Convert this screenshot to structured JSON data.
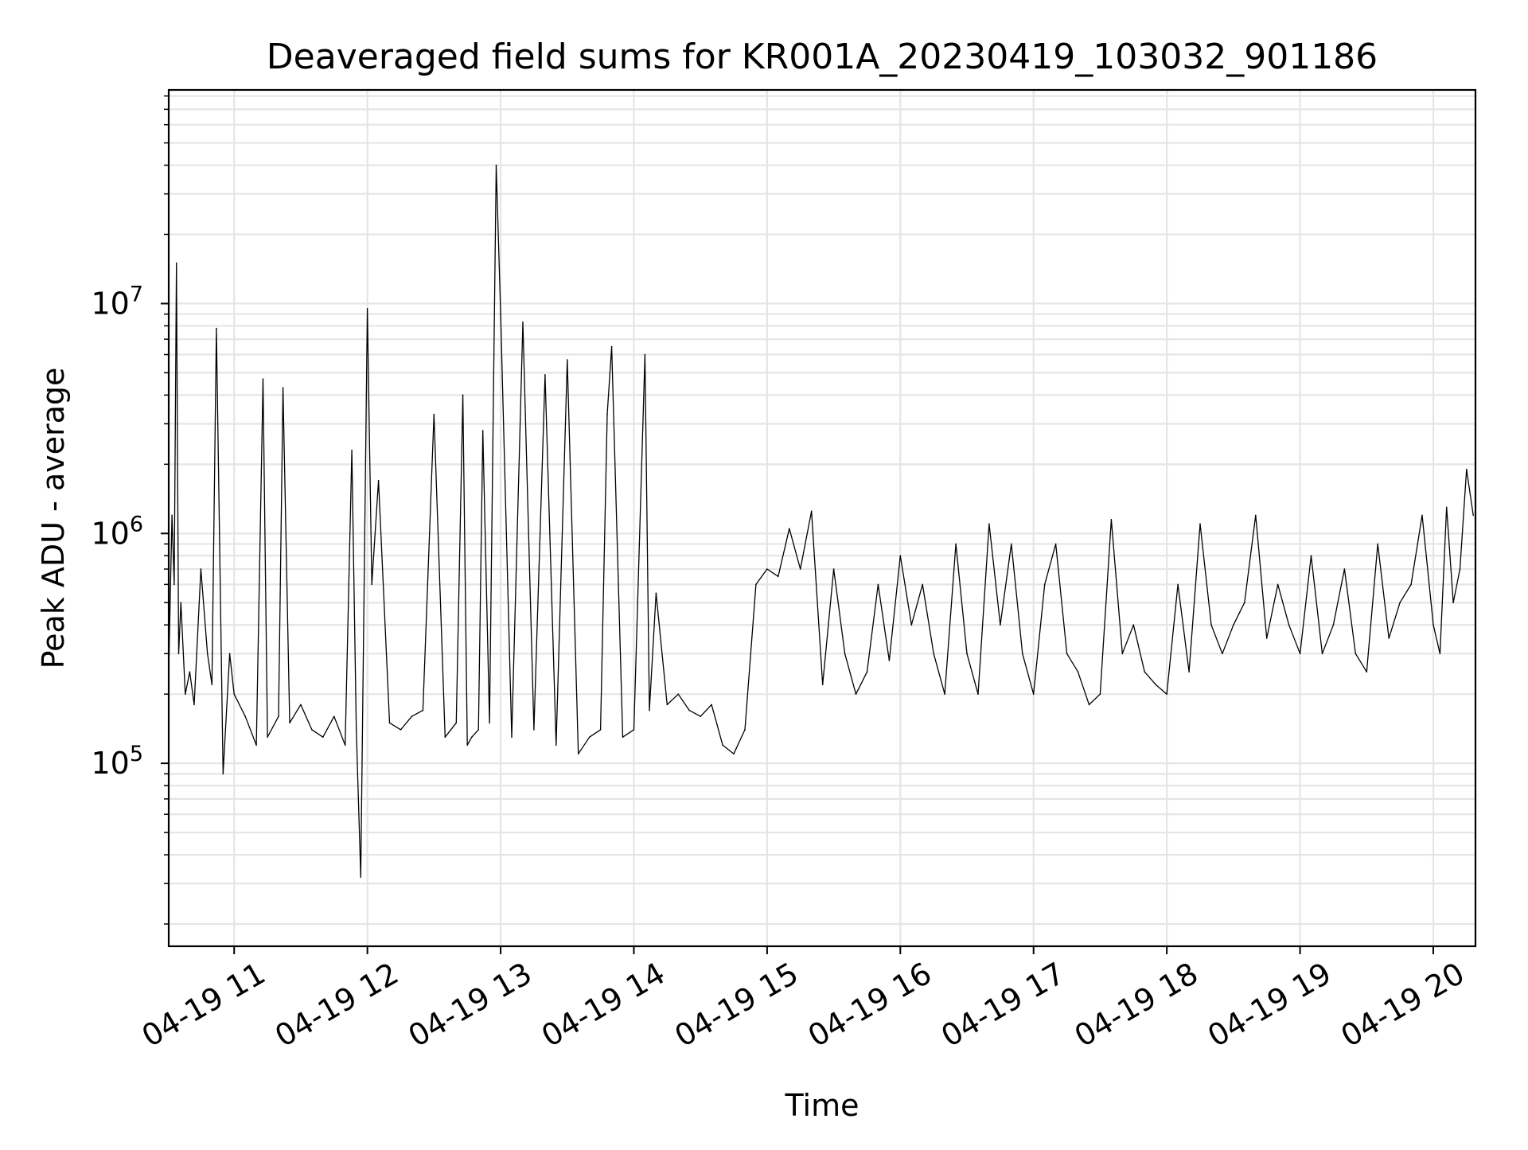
{
  "chart_data": {
    "type": "line",
    "title": "Deaveraged field sums for KR001A_20230419_103032_901186",
    "xlabel": "Time",
    "ylabel": "Peak ADU - average",
    "yscale": "log",
    "ylim": [
      16000,
      85000000
    ],
    "xlim": [
      "2023-04-19 10:30:32",
      "2023-04-19 20:19:00"
    ],
    "grid": true,
    "legend": "none",
    "line_color": "#000000",
    "grid_color": "#e5e5e5",
    "x_ticks": [
      {
        "t": "2023-04-19 11:00",
        "label": "04-19 11"
      },
      {
        "t": "2023-04-19 12:00",
        "label": "04-19 12"
      },
      {
        "t": "2023-04-19 13:00",
        "label": "04-19 13"
      },
      {
        "t": "2023-04-19 14:00",
        "label": "04-19 14"
      },
      {
        "t": "2023-04-19 15:00",
        "label": "04-19 15"
      },
      {
        "t": "2023-04-19 16:00",
        "label": "04-19 16"
      },
      {
        "t": "2023-04-19 17:00",
        "label": "04-19 17"
      },
      {
        "t": "2023-04-19 18:00",
        "label": "04-19 18"
      },
      {
        "t": "2023-04-19 19:00",
        "label": "04-19 19"
      },
      {
        "t": "2023-04-19 20:00",
        "label": "04-19 20"
      }
    ],
    "y_ticks": [
      {
        "value": 100000,
        "base": "10",
        "exp": "5"
      },
      {
        "value": 1000000,
        "base": "10",
        "exp": "6"
      },
      {
        "value": 10000000,
        "base": "10",
        "exp": "7"
      }
    ],
    "series": [
      {
        "x": [
          "2023-04-19 10:30:32",
          "2023-04-19 10:32",
          "2023-04-19 10:33",
          "2023-04-19 10:34",
          "2023-04-19 10:35",
          "2023-04-19 10:36",
          "2023-04-19 10:38",
          "2023-04-19 10:40",
          "2023-04-19 10:42",
          "2023-04-19 10:45",
          "2023-04-19 10:48",
          "2023-04-19 10:50",
          "2023-04-19 10:52",
          "2023-04-19 10:55",
          "2023-04-19 10:58",
          "2023-04-19 11:00",
          "2023-04-19 11:05",
          "2023-04-19 11:10",
          "2023-04-19 11:13",
          "2023-04-19 11:15",
          "2023-04-19 11:20",
          "2023-04-19 11:22",
          "2023-04-19 11:25",
          "2023-04-19 11:30",
          "2023-04-19 11:35",
          "2023-04-19 11:40",
          "2023-04-19 11:45",
          "2023-04-19 11:50",
          "2023-04-19 11:53",
          "2023-04-19 11:55",
          "2023-04-19 11:57",
          "2023-04-19 12:00",
          "2023-04-19 12:02",
          "2023-04-19 12:05",
          "2023-04-19 12:10",
          "2023-04-19 12:15",
          "2023-04-19 12:20",
          "2023-04-19 12:25",
          "2023-04-19 12:30",
          "2023-04-19 12:35",
          "2023-04-19 12:40",
          "2023-04-19 12:43",
          "2023-04-19 12:45",
          "2023-04-19 12:47",
          "2023-04-19 12:50",
          "2023-04-19 12:52",
          "2023-04-19 12:55",
          "2023-04-19 12:58",
          "2023-04-19 13:00",
          "2023-04-19 13:05",
          "2023-04-19 13:10",
          "2023-04-19 13:15",
          "2023-04-19 13:20",
          "2023-04-19 13:25",
          "2023-04-19 13:30",
          "2023-04-19 13:35",
          "2023-04-19 13:40",
          "2023-04-19 13:45",
          "2023-04-19 13:48",
          "2023-04-19 13:50",
          "2023-04-19 13:55",
          "2023-04-19 14:00",
          "2023-04-19 14:05",
          "2023-04-19 14:07",
          "2023-04-19 14:10",
          "2023-04-19 14:15",
          "2023-04-19 14:20",
          "2023-04-19 14:25",
          "2023-04-19 14:30",
          "2023-04-19 14:35",
          "2023-04-19 14:40",
          "2023-04-19 14:45",
          "2023-04-19 14:50",
          "2023-04-19 14:55",
          "2023-04-19 15:00",
          "2023-04-19 15:05",
          "2023-04-19 15:10",
          "2023-04-19 15:15",
          "2023-04-19 15:20",
          "2023-04-19 15:25",
          "2023-04-19 15:30",
          "2023-04-19 15:35",
          "2023-04-19 15:40",
          "2023-04-19 15:45",
          "2023-04-19 15:50",
          "2023-04-19 15:55",
          "2023-04-19 16:00",
          "2023-04-19 16:05",
          "2023-04-19 16:10",
          "2023-04-19 16:15",
          "2023-04-19 16:20",
          "2023-04-19 16:25",
          "2023-04-19 16:30",
          "2023-04-19 16:35",
          "2023-04-19 16:40",
          "2023-04-19 16:45",
          "2023-04-19 16:50",
          "2023-04-19 16:55",
          "2023-04-19 17:00",
          "2023-04-19 17:05",
          "2023-04-19 17:10",
          "2023-04-19 17:15",
          "2023-04-19 17:20",
          "2023-04-19 17:25",
          "2023-04-19 17:30",
          "2023-04-19 17:35",
          "2023-04-19 17:40",
          "2023-04-19 17:45",
          "2023-04-19 17:50",
          "2023-04-19 17:55",
          "2023-04-19 18:00",
          "2023-04-19 18:05",
          "2023-04-19 18:10",
          "2023-04-19 18:15",
          "2023-04-19 18:20",
          "2023-04-19 18:25",
          "2023-04-19 18:30",
          "2023-04-19 18:35",
          "2023-04-19 18:40",
          "2023-04-19 18:45",
          "2023-04-19 18:50",
          "2023-04-19 18:55",
          "2023-04-19 19:00",
          "2023-04-19 19:05",
          "2023-04-19 19:10",
          "2023-04-19 19:15",
          "2023-04-19 19:20",
          "2023-04-19 19:25",
          "2023-04-19 19:30",
          "2023-04-19 19:35",
          "2023-04-19 19:40",
          "2023-04-19 19:45",
          "2023-04-19 19:50",
          "2023-04-19 19:55",
          "2023-04-19 20:00",
          "2023-04-19 20:03",
          "2023-04-19 20:06",
          "2023-04-19 20:09",
          "2023-04-19 20:12",
          "2023-04-19 20:15",
          "2023-04-19 20:18"
        ],
        "y": [
          250000,
          1200000,
          600000,
          15000000,
          300000,
          500000,
          200000,
          250000,
          180000,
          700000,
          300000,
          220000,
          7800000,
          90000,
          300000,
          200000,
          160000,
          120000,
          4700000,
          130000,
          160000,
          4300000,
          150000,
          180000,
          140000,
          130000,
          160000,
          120000,
          2300000,
          140000,
          32000,
          9500000,
          600000,
          1700000,
          150000,
          140000,
          160000,
          170000,
          3300000,
          130000,
          150000,
          4000000,
          120000,
          130000,
          140000,
          2800000,
          150000,
          40000000,
          9000000,
          130000,
          8300000,
          140000,
          4900000,
          120000,
          5700000,
          110000,
          130000,
          140000,
          3300000,
          6500000,
          130000,
          140000,
          6000000,
          170000,
          550000,
          180000,
          200000,
          170000,
          160000,
          180000,
          120000,
          110000,
          140000,
          600000,
          700000,
          650000,
          1050000,
          700000,
          1250000,
          220000,
          700000,
          300000,
          200000,
          250000,
          600000,
          280000,
          800000,
          400000,
          600000,
          300000,
          200000,
          900000,
          300000,
          200000,
          1100000,
          400000,
          900000,
          300000,
          200000,
          600000,
          900000,
          300000,
          250000,
          180000,
          200000,
          1150000,
          300000,
          400000,
          250000,
          220000,
          200000,
          600000,
          250000,
          1100000,
          400000,
          300000,
          400000,
          500000,
          1200000,
          350000,
          600000,
          400000,
          300000,
          800000,
          300000,
          400000,
          700000,
          300000,
          250000,
          900000,
          350000,
          500000,
          600000,
          1200000,
          400000,
          300000,
          1300000,
          500000,
          700000,
          1900000,
          1200000
        ]
      }
    ]
  }
}
